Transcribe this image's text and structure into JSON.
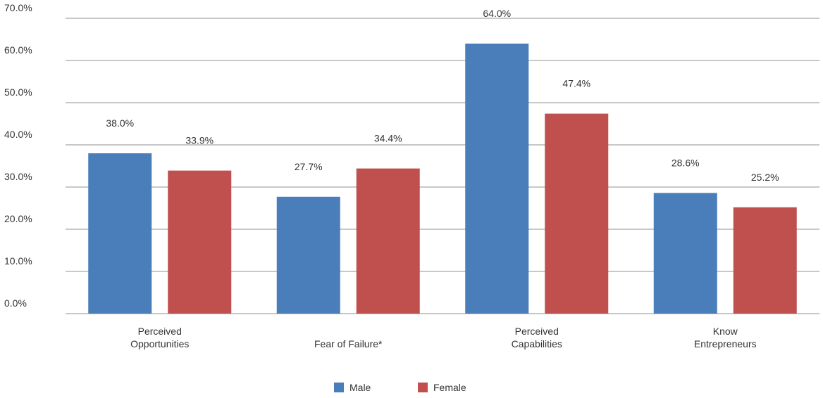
{
  "chart_data": {
    "type": "bar",
    "categories": [
      [
        "Perceived",
        "Opportunities"
      ],
      [
        "Fear of Failure*"
      ],
      [
        "Perceived",
        "Capabilities"
      ],
      [
        "Know",
        "Entrepreneurs"
      ]
    ],
    "series": [
      {
        "name": "Male",
        "color": "#4a7ebb",
        "values": [
          38.0,
          27.7,
          64.0,
          28.6
        ],
        "labels": [
          "38.0%",
          "27.7%",
          "64.0%",
          "28.6%"
        ]
      },
      {
        "name": "Female",
        "color": "#c0504d",
        "values": [
          33.9,
          34.4,
          47.4,
          25.2
        ],
        "labels": [
          "33.9%",
          "34.4%",
          "47.4%",
          "25.2%"
        ]
      }
    ],
    "ylim": [
      0,
      70
    ],
    "yticks": [
      0,
      10,
      20,
      30,
      40,
      50,
      60,
      70
    ],
    "ytick_labels": [
      "0.0%",
      "10.0%",
      "20.0%",
      "30.0%",
      "40.0%",
      "50.0%",
      "60.0%",
      "70.0%"
    ],
    "grid": true,
    "legend_position": "bottom-center",
    "title": "",
    "xlabel": "",
    "ylabel": ""
  }
}
